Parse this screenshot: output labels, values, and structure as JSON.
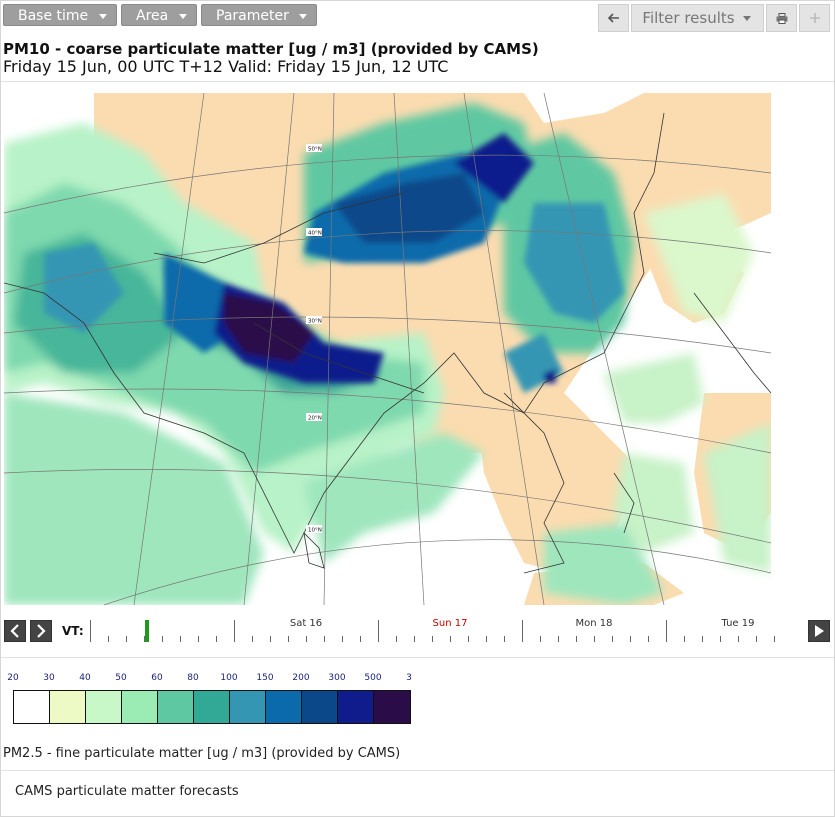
{
  "toolbar": {
    "base_time": "Base time",
    "area": "Area",
    "parameter": "Parameter",
    "back_icon": "arrow-left-icon",
    "filter_results": "Filter results",
    "print_icon": "print-icon",
    "zoom_icon": "plus-icon"
  },
  "title": {
    "line1": "PM10 - coarse particulate matter [ug / m3] (provided by CAMS)",
    "line2": "Friday 15 Jun, 00 UTC T+12 Valid: Friday 15 Jun, 12 UTC"
  },
  "map": {
    "lat_labels": [
      "50°N",
      "40°N",
      "30°N",
      "20°N",
      "10°N"
    ]
  },
  "timeline": {
    "label": "VT:",
    "days": [
      {
        "label": "Sat 16",
        "highlight": false
      },
      {
        "label": "Sun 17",
        "highlight": true
      },
      {
        "label": "Mon 18",
        "highlight": false
      },
      {
        "label": "Tue 19",
        "highlight": false
      }
    ],
    "colors": {
      "normal": "#333333",
      "highlight": "#cc0000",
      "marker": "#1e9b1e"
    }
  },
  "legend": {
    "ticks": [
      "20",
      "30",
      "40",
      "50",
      "60",
      "80",
      "100",
      "150",
      "200",
      "300",
      "500",
      "3"
    ],
    "colors": [
      "#ffffff",
      "#eefac6",
      "#c8f8c8",
      "#9aebb4",
      "#5ec8a2",
      "#32a996",
      "#3596b4",
      "#0a6aab",
      "#0a488a",
      "#101c8c",
      "#2a0c48"
    ]
  },
  "other_parameter": "PM2.5 - fine particulate matter [ug / m3] (provided by CAMS)",
  "footer": "CAMS particulate matter forecasts"
}
